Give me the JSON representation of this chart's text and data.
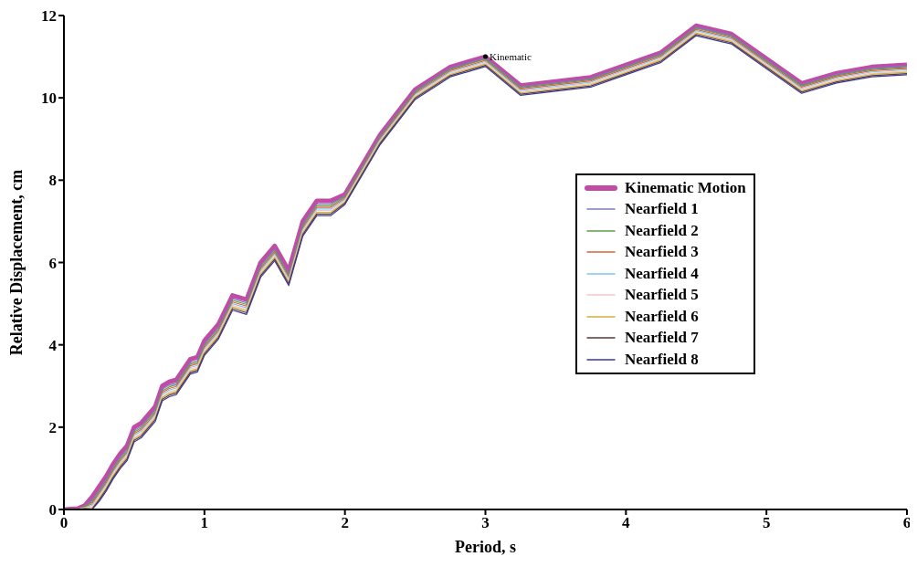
{
  "chart_data": {
    "type": "line",
    "xlabel": "Period, s",
    "ylabel": "Relative Displacement, cm",
    "x": [
      0,
      0.1,
      0.15,
      0.2,
      0.25,
      0.3,
      0.35,
      0.4,
      0.45,
      0.5,
      0.55,
      0.6,
      0.65,
      0.7,
      0.75,
      0.8,
      0.85,
      0.9,
      0.95,
      1.0,
      1.1,
      1.2,
      1.3,
      1.4,
      1.5,
      1.6,
      1.7,
      1.8,
      1.9,
      2.0,
      2.25,
      2.5,
      2.75,
      3.0,
      3.25,
      3.5,
      3.75,
      4.0,
      4.25,
      4.5,
      4.75,
      5.0,
      5.25,
      5.5,
      5.75,
      6.0
    ],
    "series": [
      {
        "name": "Kinematic Motion",
        "color": "#c04ca6",
        "values": [
          0,
          0.02,
          0.1,
          0.3,
          0.55,
          0.8,
          1.1,
          1.35,
          1.55,
          2.0,
          2.1,
          2.3,
          2.5,
          3.0,
          3.1,
          3.15,
          3.4,
          3.65,
          3.7,
          4.1,
          4.5,
          5.2,
          5.1,
          6.0,
          6.4,
          5.8,
          7.0,
          7.5,
          7.5,
          7.65,
          9.1,
          10.2,
          10.75,
          11.0,
          10.3,
          10.4,
          10.5,
          10.8,
          11.1,
          11.75,
          11.55,
          10.95,
          10.35,
          10.6,
          10.75,
          10.8
        ]
      },
      {
        "name": "Nearfield 1",
        "color": "#7b7bbf",
        "values": [
          0,
          0,
          0.09,
          0.22,
          0.47,
          0.72,
          1.02,
          1.27,
          1.47,
          1.92,
          2.02,
          2.22,
          2.42,
          2.92,
          3.02,
          3.07,
          3.32,
          3.57,
          3.62,
          4.02,
          4.42,
          5.12,
          5.02,
          5.92,
          6.32,
          5.72,
          6.92,
          7.42,
          7.42,
          7.62,
          9.07,
          10.17,
          10.72,
          10.97,
          10.27,
          10.37,
          10.47,
          10.77,
          11.07,
          11.72,
          11.52,
          10.92,
          10.32,
          10.57,
          10.72,
          10.77
        ]
      },
      {
        "name": "Nearfield 2",
        "color": "#5f9a4a",
        "values": [
          0,
          0,
          0.08,
          0.18,
          0.43,
          0.68,
          0.98,
          1.23,
          1.43,
          1.88,
          1.98,
          2.18,
          2.38,
          2.88,
          2.98,
          3.03,
          3.28,
          3.53,
          3.58,
          3.98,
          4.38,
          5.08,
          4.98,
          5.88,
          6.28,
          5.68,
          6.88,
          7.38,
          7.38,
          7.59,
          9.04,
          10.14,
          10.69,
          10.94,
          10.24,
          10.34,
          10.44,
          10.74,
          11.04,
          11.69,
          11.49,
          10.89,
          10.29,
          10.54,
          10.69,
          10.74
        ]
      },
      {
        "name": "Nearfield 3",
        "color": "#e0603a",
        "values": [
          0,
          0,
          0.06,
          0.14,
          0.39,
          0.64,
          0.94,
          1.19,
          1.39,
          1.84,
          1.94,
          2.14,
          2.34,
          2.84,
          2.94,
          2.99,
          3.24,
          3.49,
          3.54,
          3.94,
          4.34,
          5.04,
          4.94,
          5.84,
          6.24,
          5.64,
          6.84,
          7.34,
          7.34,
          7.56,
          9.01,
          10.11,
          10.66,
          10.91,
          10.21,
          10.31,
          10.41,
          10.71,
          11.01,
          11.66,
          11.46,
          10.86,
          10.26,
          10.51,
          10.66,
          10.71
        ]
      },
      {
        "name": "Nearfield 4",
        "color": "#7ec8e8",
        "values": [
          0,
          0,
          0.05,
          0.1,
          0.35,
          0.6,
          0.9,
          1.15,
          1.35,
          1.8,
          1.9,
          2.1,
          2.3,
          2.8,
          2.9,
          2.95,
          3.2,
          3.45,
          3.5,
          3.9,
          4.3,
          5.0,
          4.9,
          5.8,
          6.2,
          5.6,
          6.8,
          7.3,
          7.3,
          7.53,
          8.98,
          10.08,
          10.63,
          10.88,
          10.18,
          10.28,
          10.38,
          10.68,
          10.98,
          11.63,
          11.43,
          10.83,
          10.23,
          10.48,
          10.63,
          10.68
        ]
      },
      {
        "name": "Nearfield 5",
        "color": "#f4c8c8",
        "values": [
          0,
          0,
          0.04,
          0.06,
          0.31,
          0.56,
          0.86,
          1.11,
          1.31,
          1.76,
          1.86,
          2.06,
          2.26,
          2.76,
          2.86,
          2.91,
          3.16,
          3.41,
          3.46,
          3.86,
          4.26,
          4.96,
          4.86,
          5.76,
          6.16,
          5.56,
          6.76,
          7.26,
          7.26,
          7.5,
          8.95,
          10.05,
          10.6,
          10.85,
          10.15,
          10.25,
          10.35,
          10.65,
          10.95,
          11.6,
          11.4,
          10.8,
          10.2,
          10.45,
          10.6,
          10.65
        ]
      },
      {
        "name": "Nearfield 6",
        "color": "#d4b040",
        "values": [
          0,
          0,
          0.03,
          0.02,
          0.27,
          0.52,
          0.82,
          1.07,
          1.27,
          1.72,
          1.82,
          2.02,
          2.22,
          2.72,
          2.82,
          2.87,
          3.12,
          3.37,
          3.42,
          3.82,
          4.22,
          4.92,
          4.82,
          5.72,
          6.12,
          5.52,
          6.72,
          7.22,
          7.22,
          7.47,
          8.92,
          10.02,
          10.57,
          10.82,
          10.12,
          10.22,
          10.32,
          10.62,
          10.92,
          11.57,
          11.37,
          10.77,
          10.17,
          10.42,
          10.57,
          10.62
        ]
      },
      {
        "name": "Nearfield 7",
        "color": "#5a3a3a",
        "values": [
          0,
          0,
          0.02,
          0.01,
          0.23,
          0.48,
          0.78,
          1.03,
          1.23,
          1.68,
          1.78,
          1.98,
          2.18,
          2.68,
          2.78,
          2.83,
          3.08,
          3.33,
          3.38,
          3.78,
          4.18,
          4.88,
          4.78,
          5.68,
          6.08,
          5.48,
          6.68,
          7.18,
          7.18,
          7.44,
          8.89,
          9.99,
          10.54,
          10.79,
          10.09,
          10.19,
          10.29,
          10.59,
          10.89,
          11.54,
          11.34,
          10.74,
          10.14,
          10.39,
          10.54,
          10.59
        ]
      },
      {
        "name": "Nearfield 8",
        "color": "#3a3a9a",
        "values": [
          null,
          null,
          null,
          0,
          0.19,
          0.44,
          0.74,
          0.99,
          1.19,
          1.64,
          1.74,
          1.94,
          2.14,
          2.64,
          2.74,
          2.79,
          3.04,
          3.29,
          3.34,
          3.74,
          4.14,
          4.84,
          4.74,
          5.64,
          6.04,
          5.44,
          6.64,
          7.14,
          7.14,
          7.41,
          8.86,
          9.96,
          10.51,
          10.76,
          10.06,
          10.16,
          10.26,
          10.56,
          10.86,
          11.51,
          11.31,
          10.71,
          10.11,
          10.36,
          10.51,
          10.56
        ]
      }
    ],
    "xlim": [
      0,
      6
    ],
    "xticks": [
      0,
      1,
      2,
      3,
      4,
      5,
      6
    ],
    "ylim": [
      0,
      12
    ],
    "yticks": [
      0,
      2,
      4,
      6,
      8,
      10,
      12
    ],
    "annotations": [
      {
        "text": "Kinematic",
        "x": 3,
        "y": 11
      }
    ],
    "grid": false,
    "legend": "right",
    "marker": "none",
    "line_style": "solid"
  }
}
